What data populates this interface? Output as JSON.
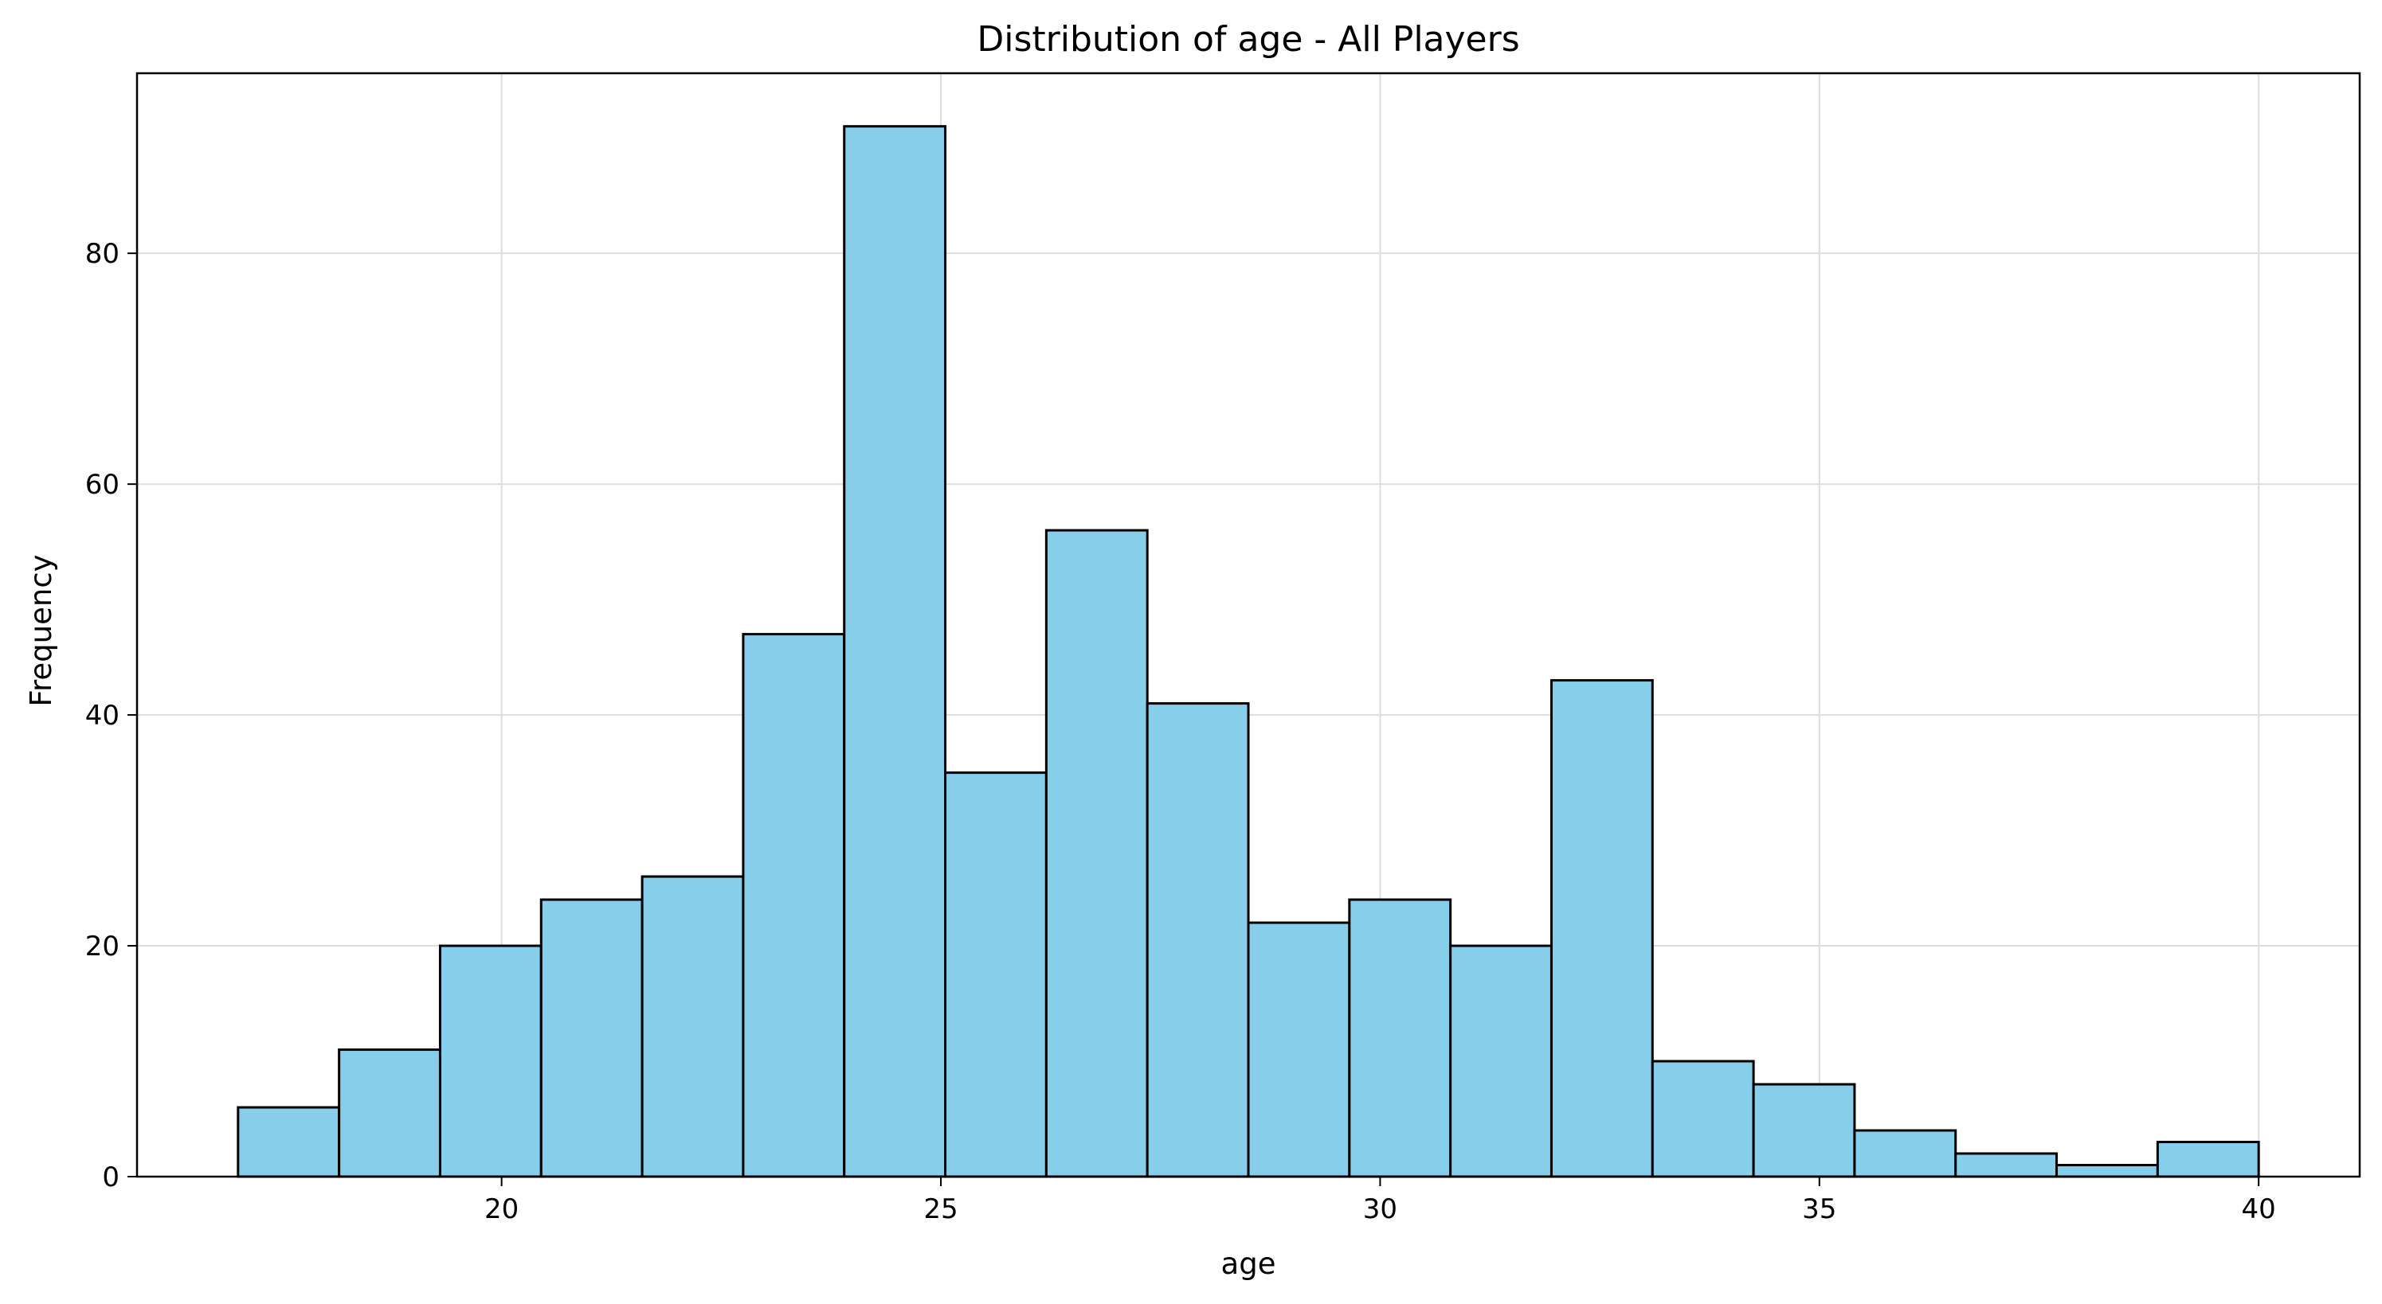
{
  "chart_data": {
    "type": "bar",
    "title": "Distribution of age - All Players",
    "xlabel": "age",
    "ylabel": "Frequency",
    "xlim": [
      15.85,
      41.15
    ],
    "ylim": [
      0,
      95.6
    ],
    "x_ticks": [
      20,
      25,
      30,
      35,
      40
    ],
    "y_ticks": [
      0,
      20,
      40,
      60,
      80
    ],
    "grid": true,
    "bar_color": "#87CEEB",
    "edge_color": "#000000",
    "bin_edges": [
      17.0,
      18.15,
      19.3,
      20.45,
      21.6,
      22.75,
      23.9,
      25.05,
      26.2,
      27.35,
      28.5,
      29.65,
      30.8,
      31.95,
      33.1,
      34.25,
      35.4,
      36.55,
      37.7,
      38.85,
      40.0
    ],
    "values": [
      6,
      11,
      20,
      24,
      26,
      47,
      91,
      35,
      56,
      41,
      22,
      24,
      20,
      43,
      10,
      8,
      4,
      2,
      1,
      3
    ]
  }
}
